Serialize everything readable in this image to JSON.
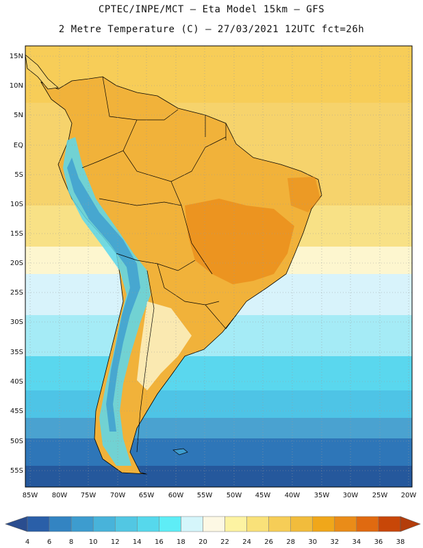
{
  "header": {
    "line1": "CPTEC/INPE/MCT –  Eta Model 15km – GFS",
    "line2": "2 Metre Temperature (C) – 27/03/2021 12UTC fct=26h"
  },
  "map": {
    "lat_labels": [
      "15N",
      "10N",
      "5N",
      "EQ",
      "5S",
      "10S",
      "15S",
      "20S",
      "25S",
      "30S",
      "35S",
      "40S",
      "45S",
      "50S",
      "55S"
    ],
    "lon_labels": [
      "85W",
      "80W",
      "75W",
      "70W",
      "65W",
      "60W",
      "55W",
      "50W",
      "45W",
      "40W",
      "35W",
      "30W",
      "25W",
      "20W"
    ],
    "ocean_bands": [
      {
        "color": "#f7cd58"
      },
      {
        "color": "#f6d36c"
      },
      {
        "color": "#f8e186"
      },
      {
        "color": "#fdf6cf"
      },
      {
        "color": "#d8f3fb"
      },
      {
        "color": "#a5ebf6"
      },
      {
        "color": "#5ad7ee"
      },
      {
        "color": "#4ec4e6"
      },
      {
        "color": "#4aa2d0"
      },
      {
        "color": "#2e76b8"
      },
      {
        "color": "#25589c"
      }
    ]
  },
  "colorbar": {
    "ticks": [
      "4",
      "6",
      "8",
      "10",
      "12",
      "14",
      "16",
      "18",
      "20",
      "22",
      "24",
      "26",
      "28",
      "30",
      "32",
      "34",
      "36",
      "38"
    ],
    "colors": [
      "#2a5fa8",
      "#3384c2",
      "#3d9ccf",
      "#48b3da",
      "#52c7e3",
      "#56d8ec",
      "#5eedf6",
      "#d5f6fb",
      "#fdf8e4",
      "#fdf3a2",
      "#f9e179",
      "#f6cd57",
      "#f1bc3c",
      "#f0a71a",
      "#ea8c18",
      "#e06a10",
      "#c84708"
    ],
    "under_color": "#2a4d8f",
    "over_color": "#b33d0b"
  }
}
